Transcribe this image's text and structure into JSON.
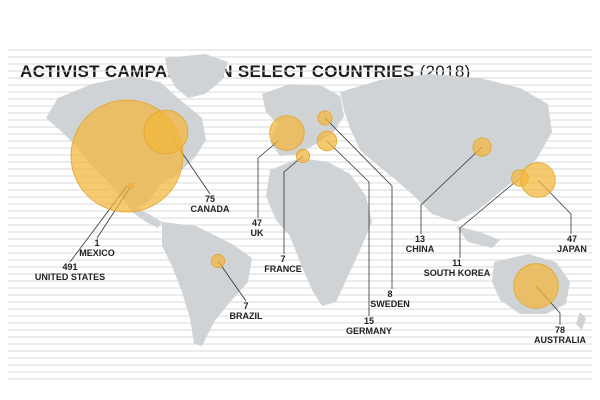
{
  "title": "ACTIVIST CAMPAIGNS IN SELECT COUNTRIES",
  "year": "(2018)",
  "colors": {
    "bubble": "#f2b53a",
    "bubble_stroke": "#e3a52a",
    "land": "#cfd3d6",
    "lines": "#d9d9d9",
    "leader": "#333333"
  },
  "countries": [
    {
      "name": "UNITED STATES",
      "value": "491"
    },
    {
      "name": "MEXICO",
      "value": "1"
    },
    {
      "name": "CANADA",
      "value": "75"
    },
    {
      "name": "UK",
      "value": "47"
    },
    {
      "name": "FRANCE",
      "value": "7"
    },
    {
      "name": "BRAZIL",
      "value": "7"
    },
    {
      "name": "GERMANY",
      "value": "15"
    },
    {
      "name": "SWEDEN",
      "value": "8"
    },
    {
      "name": "CHINA",
      "value": "13"
    },
    {
      "name": "SOUTH KOREA",
      "value": "11"
    },
    {
      "name": "JAPAN",
      "value": "47"
    },
    {
      "name": "AUSTRALIA",
      "value": "78"
    }
  ]
}
